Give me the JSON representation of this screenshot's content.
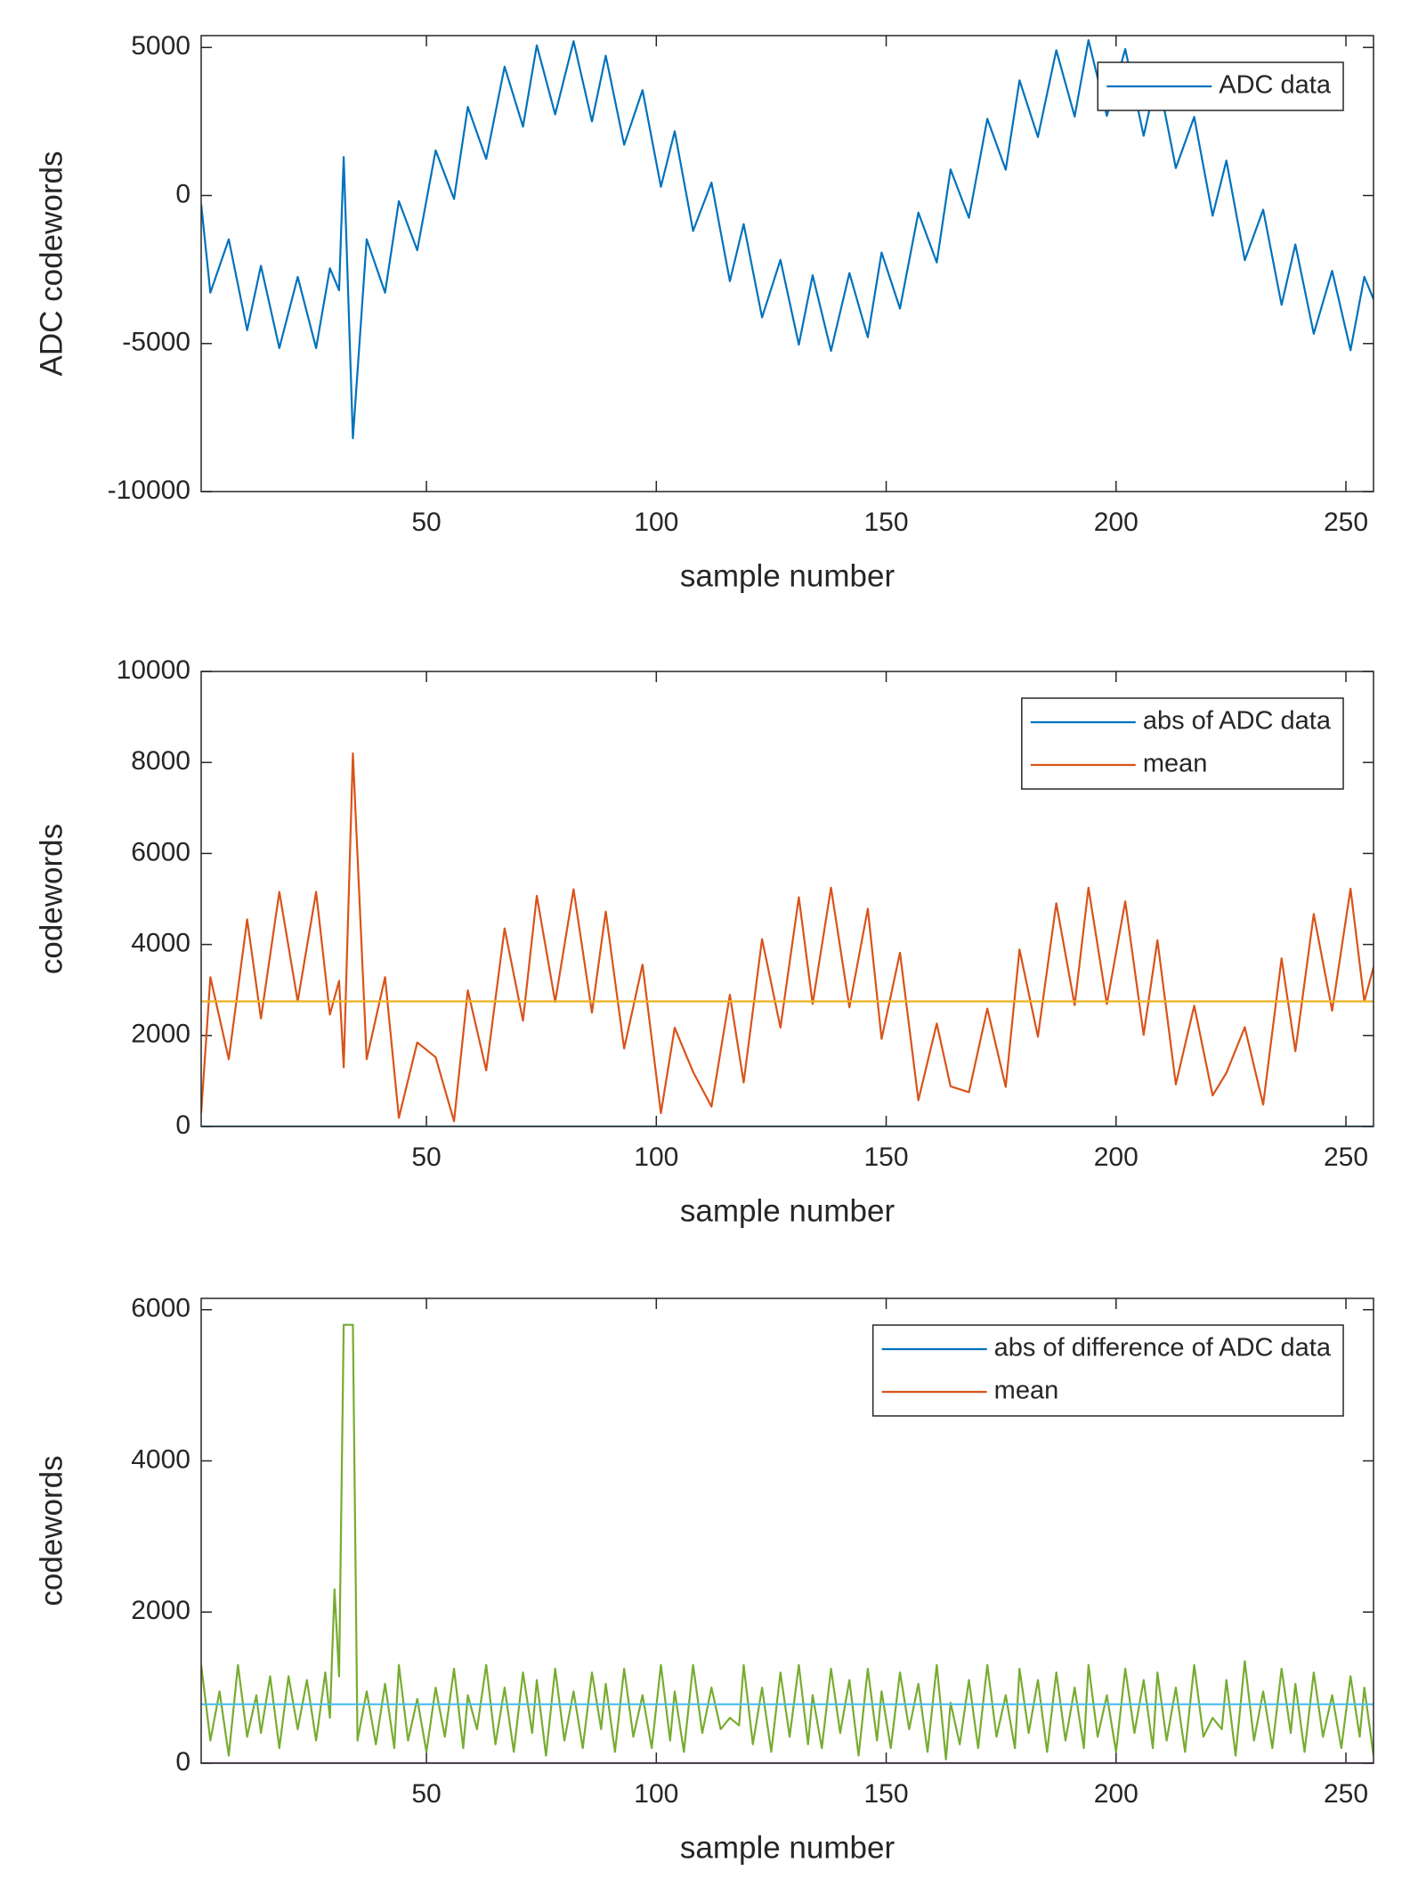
{
  "chart_data": [
    {
      "type": "line",
      "xlabel": "sample number",
      "ylabel": "ADC codewords",
      "xlim": [
        1,
        256
      ],
      "ylim": [
        -10000,
        5400
      ],
      "xticks": [
        50,
        100,
        150,
        200,
        250
      ],
      "yticks": [
        -10000,
        -5000,
        0,
        5000
      ],
      "legend_position": "northeast",
      "legend": [
        {
          "label": "ADC data",
          "color": "#0072bd"
        }
      ],
      "x": [
        1,
        3,
        7,
        11,
        14,
        18,
        22,
        26,
        29,
        31,
        32,
        34,
        37,
        41,
        44,
        48,
        52,
        56,
        59,
        63,
        67,
        71,
        74,
        78,
        82,
        86,
        89,
        93,
        97,
        101,
        104,
        108,
        112,
        116,
        119,
        123,
        127,
        131,
        134,
        138,
        142,
        146,
        149,
        153,
        157,
        161,
        164,
        168,
        172,
        176,
        179,
        183,
        187,
        191,
        194,
        198,
        202,
        206,
        209,
        213,
        217,
        221,
        224,
        228,
        232,
        236,
        239,
        243,
        247,
        251,
        254,
        256
      ],
      "series": [
        {
          "color": "#0072bd",
          "values": [
            -300,
            -3282,
            -1479,
            -4550,
            -2374,
            -5155,
            -2750,
            -5155,
            -2461,
            -3200,
            1300,
            -8200,
            -1479,
            -3282,
            -190,
            -1848,
            1523,
            -117,
            2993,
            1234,
            4353,
            2326,
            5070,
            2739,
            5213,
            2502,
            4722,
            1714,
            3558,
            294,
            2170,
            -1199,
            437,
            -2894,
            -966,
            -4118,
            -2174,
            -5038,
            -2694,
            -5248,
            -2618,
            -4786,
            -1926,
            -3818,
            -578,
            -2262,
            882,
            -754,
            2590,
            870,
            3890,
            1974,
            4906,
            2666,
            5248,
            2690,
            4946,
            2014,
            4094,
            926,
            2654,
            -682,
            1178,
            -2182,
            -482,
            -3694,
            -1654,
            -4670,
            -2546,
            -5226,
            -2748,
            -3500
          ]
        }
      ]
    },
    {
      "type": "line",
      "xlabel": "sample number",
      "ylabel": "codewords",
      "xlim": [
        1,
        256
      ],
      "ylim": [
        0,
        10000
      ],
      "xticks": [
        50,
        100,
        150,
        200,
        250
      ],
      "yticks": [
        0,
        2000,
        4000,
        6000,
        8000,
        10000
      ],
      "legend_position": "northeast",
      "legend": [
        {
          "label": "abs of ADC data",
          "color": "#0072bd"
        },
        {
          "label": "mean",
          "color": "#d95319"
        }
      ],
      "x": [
        1,
        3,
        7,
        11,
        14,
        18,
        22,
        26,
        29,
        31,
        32,
        34,
        37,
        41,
        44,
        48,
        52,
        56,
        59,
        63,
        67,
        71,
        74,
        78,
        82,
        86,
        89,
        93,
        97,
        101,
        104,
        108,
        112,
        116,
        119,
        123,
        127,
        131,
        134,
        138,
        142,
        146,
        149,
        153,
        157,
        161,
        164,
        168,
        172,
        176,
        179,
        183,
        187,
        191,
        194,
        198,
        202,
        206,
        209,
        213,
        217,
        221,
        224,
        228,
        232,
        236,
        239,
        243,
        247,
        251,
        254,
        256
      ],
      "series": [
        {
          "color": "#0072bd",
          "x": [
            1,
            256
          ],
          "values": [
            0,
            0
          ]
        },
        {
          "color": "#d95319",
          "values": [
            300,
            3282,
            1479,
            4550,
            2374,
            5155,
            2750,
            5155,
            2461,
            3200,
            1300,
            8200,
            1479,
            3282,
            190,
            1848,
            1523,
            117,
            2993,
            1234,
            4353,
            2326,
            5070,
            2739,
            5213,
            2502,
            4722,
            1714,
            3558,
            294,
            2170,
            1199,
            437,
            2894,
            966,
            4118,
            2174,
            5038,
            2694,
            5248,
            2618,
            4786,
            1926,
            3818,
            578,
            2262,
            882,
            754,
            2590,
            870,
            3890,
            1974,
            4906,
            2666,
            5248,
            2690,
            4946,
            2014,
            4094,
            926,
            2654,
            682,
            1178,
            2182,
            482,
            3694,
            1654,
            4670,
            2546,
            5226,
            2748,
            3500
          ]
        },
        {
          "color": "#edb120",
          "x": [
            1,
            256
          ],
          "values": [
            2750,
            2750
          ]
        }
      ]
    },
    {
      "type": "line",
      "xlabel": "sample number",
      "ylabel": "codewords",
      "xlim": [
        1,
        256
      ],
      "ylim": [
        0,
        6150
      ],
      "xticks": [
        50,
        100,
        150,
        200,
        250
      ],
      "yticks": [
        0,
        2000,
        4000,
        6000
      ],
      "legend_position": "northeast",
      "legend": [
        {
          "label": "abs of difference of ADC data",
          "color": "#0072bd"
        },
        {
          "label": "mean",
          "color": "#d95319"
        }
      ],
      "x": [
        1,
        3,
        5,
        7,
        9,
        11,
        13,
        14,
        16,
        18,
        20,
        22,
        24,
        26,
        28,
        29,
        30,
        31,
        32,
        34,
        35,
        37,
        39,
        41,
        43,
        44,
        46,
        48,
        50,
        52,
        54,
        56,
        58,
        59,
        61,
        63,
        65,
        67,
        69,
        71,
        73,
        74,
        76,
        78,
        80,
        82,
        84,
        86,
        88,
        89,
        91,
        93,
        95,
        97,
        99,
        101,
        103,
        104,
        106,
        108,
        110,
        112,
        114,
        116,
        118,
        119,
        121,
        123,
        125,
        127,
        129,
        131,
        133,
        134,
        136,
        138,
        140,
        142,
        144,
        146,
        148,
        149,
        151,
        153,
        155,
        157,
        159,
        161,
        163,
        164,
        166,
        168,
        170,
        172,
        174,
        176,
        178,
        179,
        181,
        183,
        185,
        187,
        189,
        191,
        193,
        194,
        196,
        198,
        200,
        202,
        204,
        206,
        208,
        209,
        211,
        213,
        215,
        217,
        219,
        221,
        223,
        224,
        226,
        228,
        230,
        232,
        234,
        236,
        238,
        239,
        241,
        243,
        245,
        247,
        249,
        251,
        253,
        254,
        256
      ],
      "series": [
        {
          "color": "#7e2f8e",
          "x": [
            1,
            256
          ],
          "values": [
            0,
            0
          ]
        },
        {
          "color": "#77ac30",
          "values": [
            1300,
            300,
            950,
            100,
            1300,
            350,
            900,
            400,
            1150,
            200,
            1150,
            450,
            1100,
            300,
            1200,
            600,
            2300,
            1150,
            5800,
            5800,
            300,
            950,
            250,
            1050,
            200,
            1300,
            300,
            850,
            150,
            1000,
            350,
            1250,
            200,
            900,
            450,
            1300,
            250,
            1000,
            150,
            1200,
            400,
            1100,
            100,
            1250,
            300,
            950,
            200,
            1200,
            450,
            1050,
            150,
            1250,
            350,
            900,
            200,
            1300,
            300,
            950,
            150,
            1300,
            400,
            1000,
            450,
            600,
            500,
            1300,
            250,
            1000,
            150,
            1200,
            350,
            1300,
            250,
            900,
            200,
            1250,
            400,
            1100,
            100,
            1250,
            300,
            950,
            200,
            1200,
            450,
            1050,
            150,
            1300,
            50,
            800,
            250,
            1100,
            200,
            1300,
            350,
            900,
            200,
            1250,
            400,
            1100,
            150,
            1200,
            300,
            1000,
            200,
            1300,
            350,
            900,
            150,
            1250,
            400,
            1100,
            200,
            1200,
            300,
            1000,
            150,
            1300,
            350,
            600,
            450,
            1100,
            100,
            1350,
            300,
            950,
            200,
            1250,
            400,
            1050,
            150,
            1200,
            350,
            900,
            200,
            1150,
            350,
            1000,
            100
          ]
        },
        {
          "color": "#4dbeee",
          "x": [
            1,
            256
          ],
          "values": [
            780,
            780
          ]
        }
      ]
    }
  ]
}
